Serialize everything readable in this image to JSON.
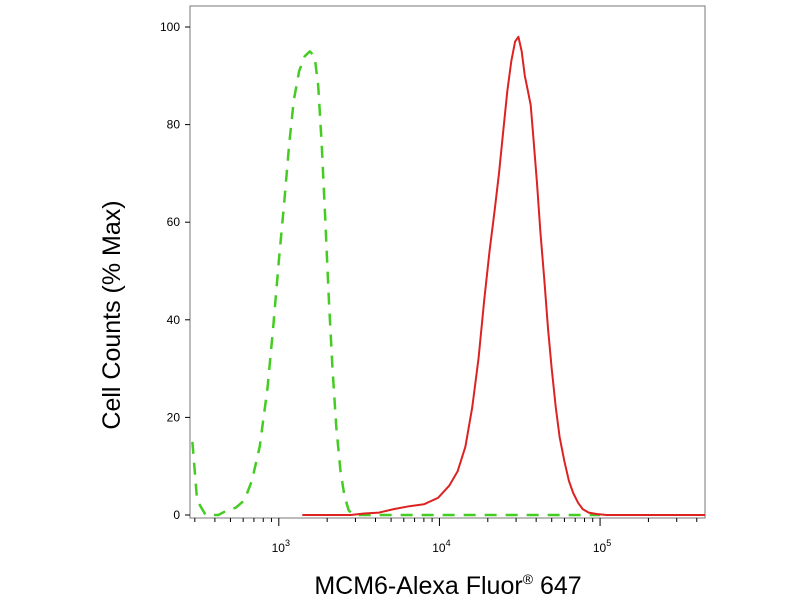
{
  "chart_data": {
    "type": "line",
    "xlabel": "MCM6-Alexa Fluor",
    "xlabel_superscript": "®",
    "xlabel_suffix": "647",
    "ylabel": "Cell Counts (% Max)",
    "x_scale": "log",
    "xlim": [
      280,
      450000
    ],
    "ylim": [
      0,
      100
    ],
    "y_ticks": [
      0,
      20,
      40,
      60,
      80,
      100
    ],
    "x_major_ticks": [
      {
        "value": 1000,
        "base": "10",
        "exp": "3"
      },
      {
        "value": 10000,
        "base": "10",
        "exp": "4"
      },
      {
        "value": 100000,
        "base": "10",
        "exp": "5"
      }
    ],
    "x_minor_ticks": [
      300,
      400,
      500,
      600,
      700,
      800,
      900,
      2000,
      3000,
      4000,
      5000,
      6000,
      7000,
      8000,
      9000,
      20000,
      30000,
      40000,
      50000,
      60000,
      70000,
      80000,
      90000,
      200000,
      300000,
      400000
    ],
    "series": [
      {
        "color": "#44cc22",
        "style": "dashed",
        "points": [
          [
            290,
            15
          ],
          [
            310,
            3
          ],
          [
            350,
            0
          ],
          [
            420,
            0
          ],
          [
            480,
            1
          ],
          [
            540,
            1.5
          ],
          [
            610,
            3
          ],
          [
            680,
            7
          ],
          [
            760,
            14
          ],
          [
            850,
            26
          ],
          [
            920,
            38
          ],
          [
            1000,
            52
          ],
          [
            1080,
            64
          ],
          [
            1160,
            76
          ],
          [
            1240,
            85
          ],
          [
            1340,
            91
          ],
          [
            1450,
            94
          ],
          [
            1560,
            95
          ],
          [
            1670,
            94
          ],
          [
            1760,
            88
          ],
          [
            1850,
            76
          ],
          [
            1950,
            60
          ],
          [
            2050,
            44
          ],
          [
            2160,
            30
          ],
          [
            2280,
            18
          ],
          [
            2420,
            9
          ],
          [
            2560,
            4
          ],
          [
            2720,
            1
          ],
          [
            2900,
            0
          ],
          [
            3500,
            0
          ],
          [
            12000,
            0
          ],
          [
            60000,
            0
          ],
          [
            100000,
            0
          ]
        ]
      },
      {
        "color": "#dd2222",
        "style": "solid",
        "points": [
          [
            1400,
            0
          ],
          [
            2800,
            0
          ],
          [
            3400,
            0.3
          ],
          [
            4200,
            0.5
          ],
          [
            5200,
            1.2
          ],
          [
            6500,
            1.8
          ],
          [
            8000,
            2.2
          ],
          [
            9800,
            3.5
          ],
          [
            11500,
            6
          ],
          [
            13000,
            9
          ],
          [
            14500,
            14
          ],
          [
            16000,
            22
          ],
          [
            17500,
            32
          ],
          [
            19000,
            44
          ],
          [
            20500,
            54
          ],
          [
            22000,
            62
          ],
          [
            23500,
            70
          ],
          [
            25000,
            79
          ],
          [
            26500,
            87
          ],
          [
            28000,
            93
          ],
          [
            29600,
            97
          ],
          [
            31000,
            98
          ],
          [
            32500,
            95
          ],
          [
            34000,
            90
          ],
          [
            35500,
            87
          ],
          [
            37000,
            84
          ],
          [
            38500,
            77
          ],
          [
            40500,
            68
          ],
          [
            42500,
            58
          ],
          [
            45000,
            48
          ],
          [
            47500,
            38
          ],
          [
            50000,
            30
          ],
          [
            53000,
            22
          ],
          [
            56000,
            16
          ],
          [
            60000,
            11
          ],
          [
            64000,
            7
          ],
          [
            68000,
            4.5
          ],
          [
            73000,
            2.5
          ],
          [
            78000,
            1.2
          ],
          [
            85000,
            0.5
          ],
          [
            95000,
            0.2
          ],
          [
            110000,
            0
          ],
          [
            200000,
            0
          ],
          [
            450000,
            0
          ]
        ]
      }
    ]
  }
}
